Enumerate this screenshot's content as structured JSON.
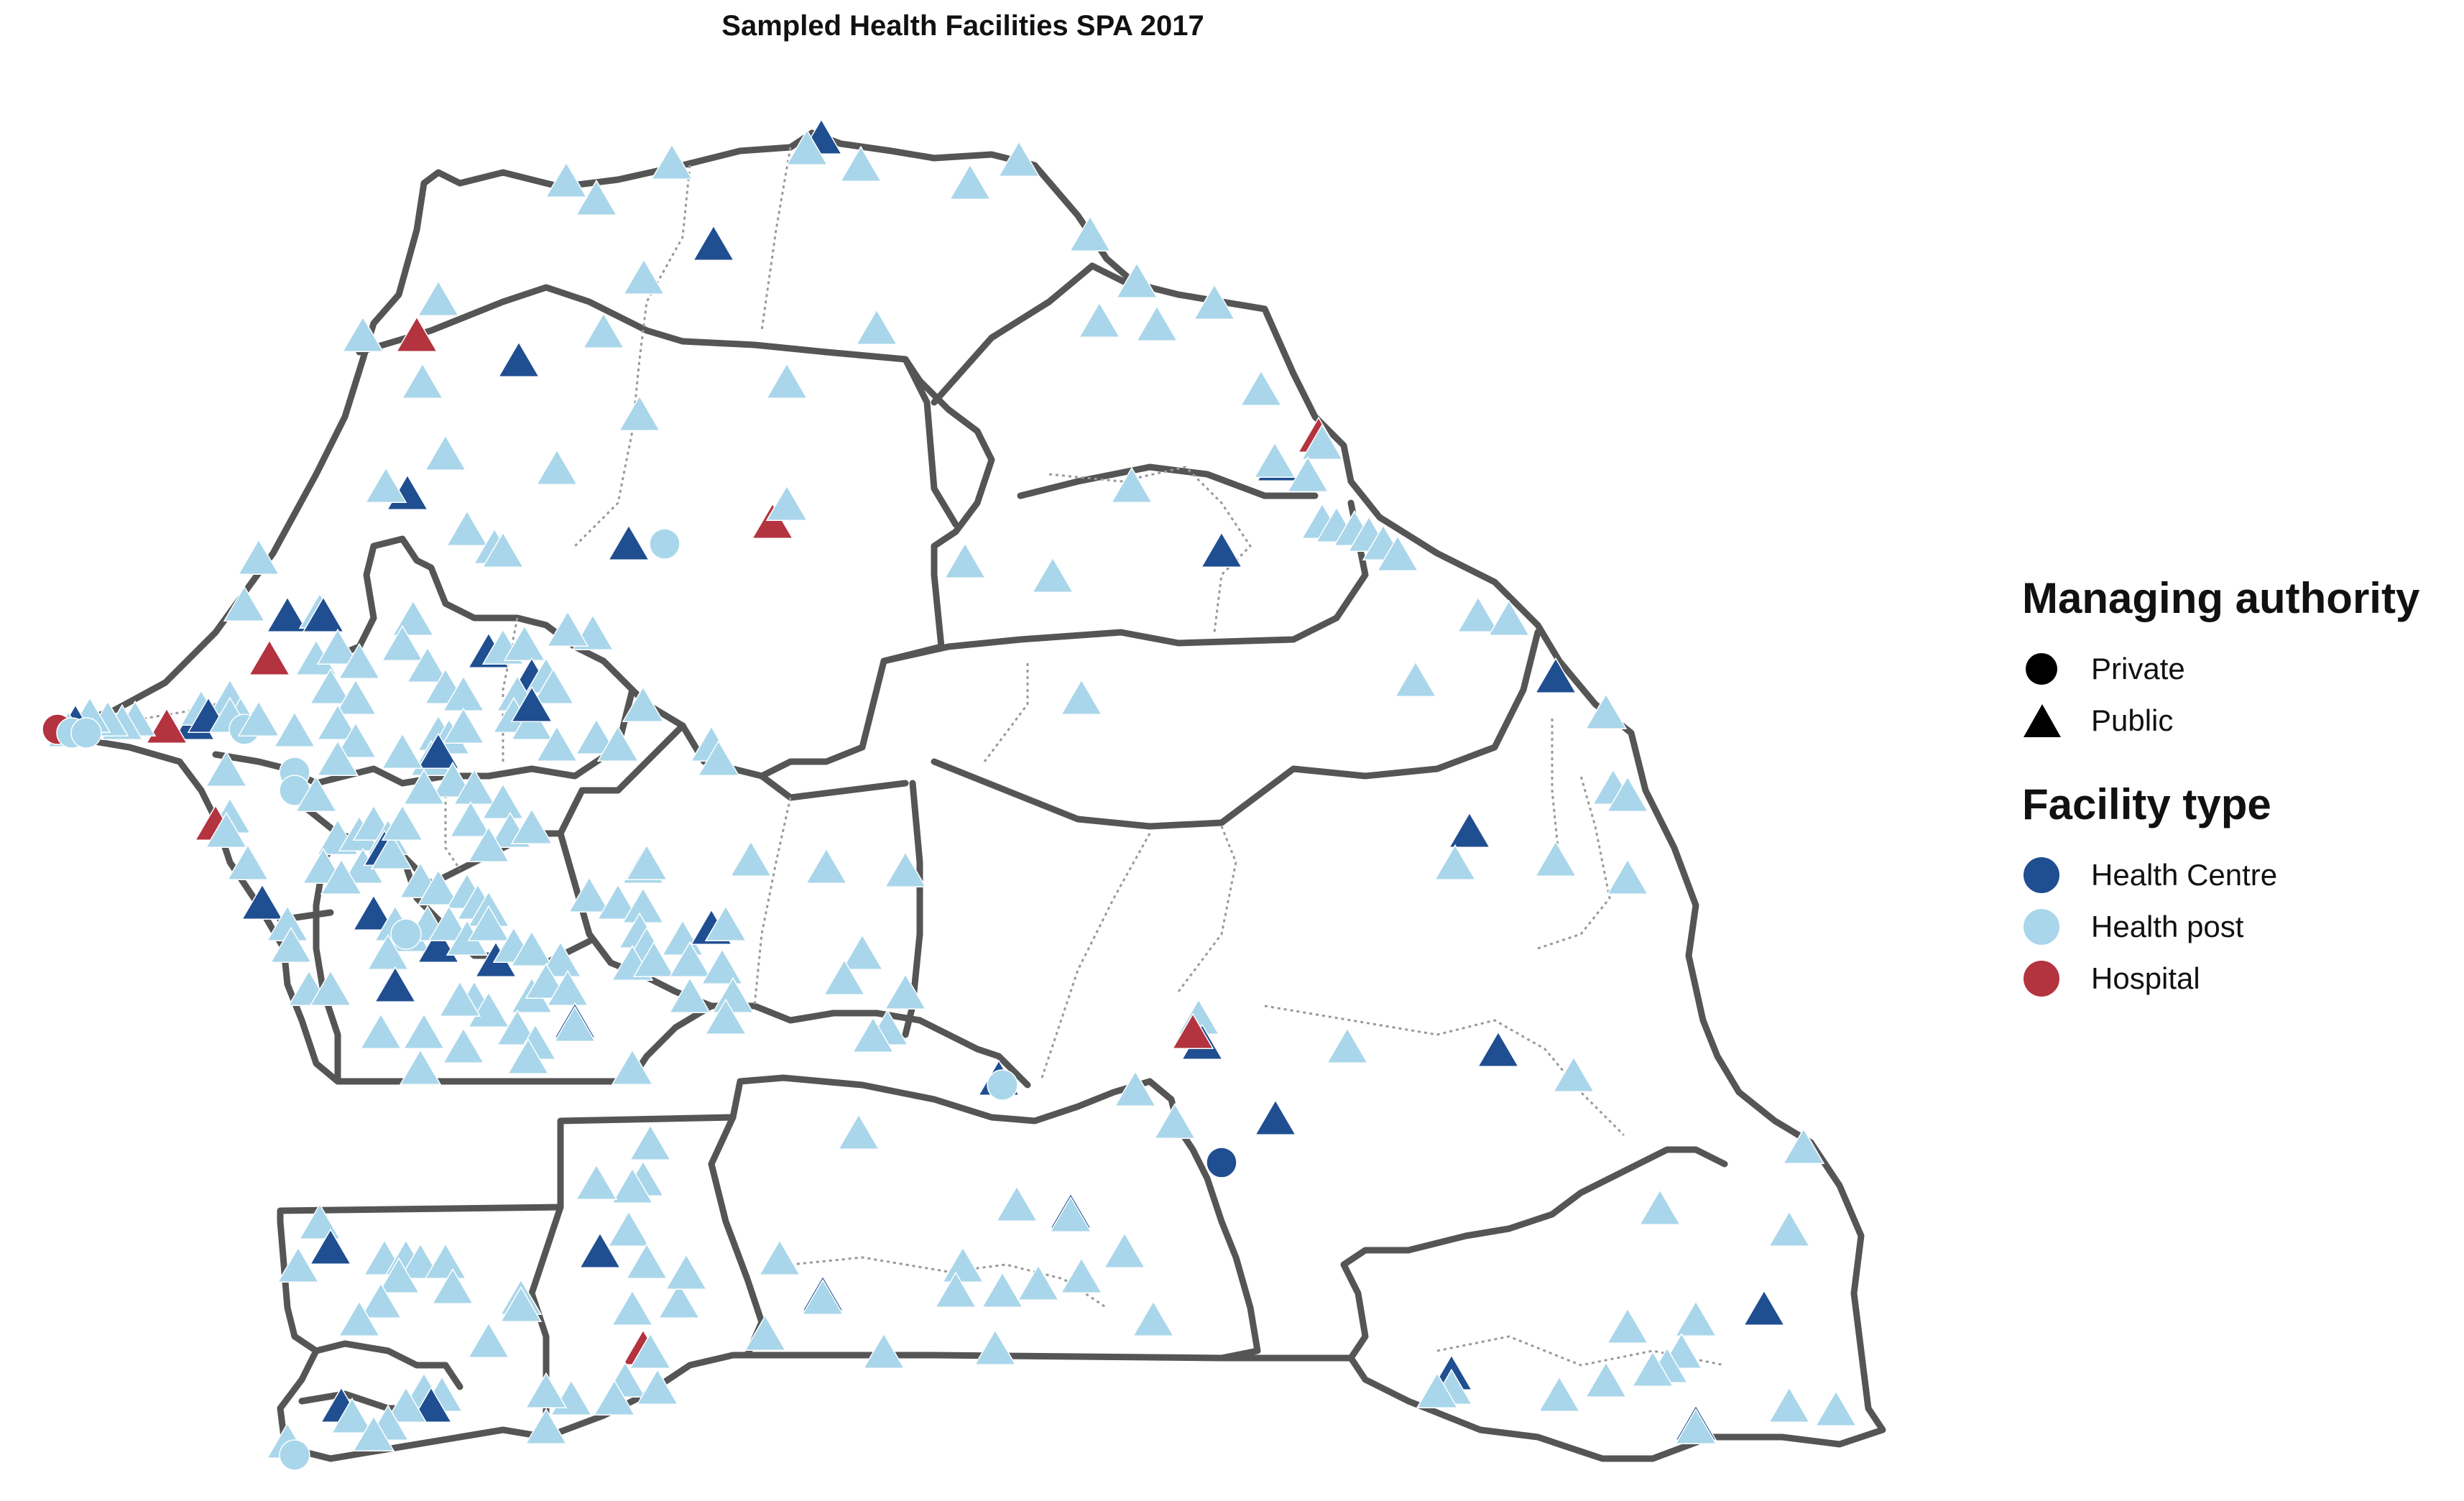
{
  "title": "Sampled Health Facilities SPA 2017",
  "legend": {
    "managing_authority": {
      "title": "Managing authority",
      "items": [
        {
          "label": "Private",
          "shape": "circle"
        },
        {
          "label": "Public",
          "shape": "triangle"
        }
      ]
    },
    "facility_type": {
      "title": "Facility type",
      "items": [
        {
          "label": "Health Centre",
          "color": "#1f4e91"
        },
        {
          "label": "Health post",
          "color": "#a9d6ea"
        },
        {
          "label": "Hospital",
          "color": "#b3333f"
        }
      ]
    }
  },
  "colors": {
    "border": "#555555",
    "district_border": "#999999",
    "marker_outline": "#ffffff"
  }
}
